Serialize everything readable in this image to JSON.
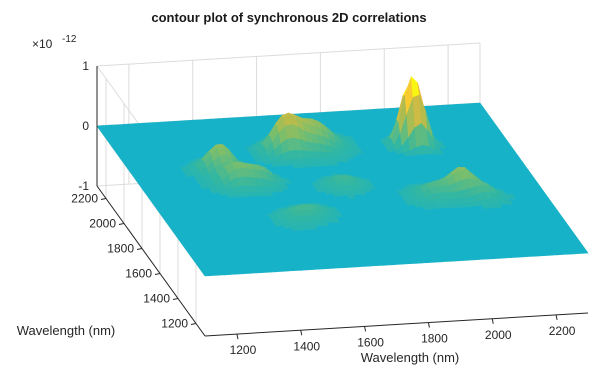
{
  "chart_data": {
    "type": "surface",
    "title": "contour plot of synchronous 2D correlations",
    "xlabel": "Wavelength (nm)",
    "ylabel": "Wavelength (nm)",
    "zlabel": "",
    "z_exponent_label": "×10",
    "z_exponent_value": "-12",
    "xticks": [
      1200,
      1400,
      1600,
      1800,
      2000,
      2200
    ],
    "yticks": [
      1200,
      1400,
      1600,
      1800,
      2000,
      2200
    ],
    "zticks": [
      -1,
      0,
      1
    ],
    "xlim": [
      1100,
      2300
    ],
    "ylim": [
      1100,
      2300
    ],
    "zlim": [
      -1.3,
      1.0
    ],
    "z_unit_scale": "1e-12",
    "colormap": "parula",
    "base_color": "#17b2c8",
    "peaks": [
      {
        "x": 1605,
        "y": 2005,
        "z": 0.55,
        "w": 40
      },
      {
        "x": 1700,
        "y": 2030,
        "z": 0.45,
        "w": 55
      },
      {
        "x": 1995,
        "y": 2010,
        "z": 0.95,
        "w": 28
      },
      {
        "x": 2025,
        "y": 1985,
        "z": 0.55,
        "w": 25
      },
      {
        "x": 1370,
        "y": 1895,
        "z": 0.45,
        "w": 40
      },
      {
        "x": 1390,
        "y": 1780,
        "z": 0.35,
        "w": 40
      },
      {
        "x": 1470,
        "y": 1780,
        "z": 0.25,
        "w": 35
      },
      {
        "x": 1500,
        "y": 1490,
        "z": 0.15,
        "w": 40
      },
      {
        "x": 1560,
        "y": 1520,
        "z": 0.12,
        "w": 40
      },
      {
        "x": 2050,
        "y": 1615,
        "z": 0.4,
        "w": 35
      },
      {
        "x": 1960,
        "y": 1600,
        "z": 0.22,
        "w": 45
      },
      {
        "x": 2110,
        "y": 1565,
        "z": 0.2,
        "w": 35
      },
      {
        "x": 1710,
        "y": 1720,
        "z": 0.18,
        "w": 40
      }
    ]
  }
}
